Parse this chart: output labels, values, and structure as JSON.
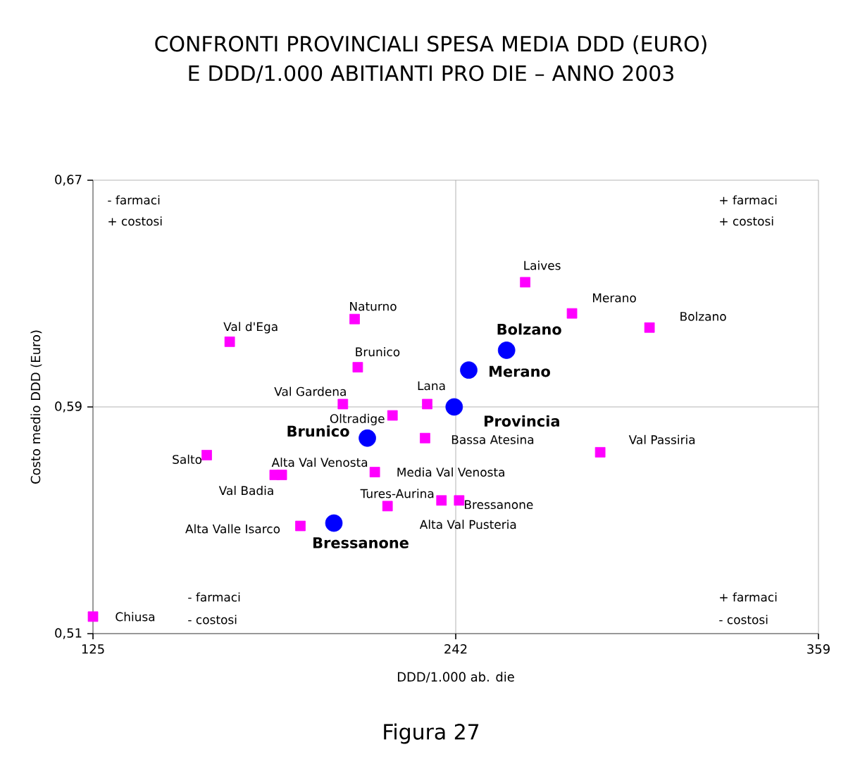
{
  "chart_data": {
    "type": "scatter",
    "title": "CONFRONTI PROVINCIALI SPESA MEDIA DDD (EURO) E DDD/1.000 ABITIANTI PRO DIE – ANNO 2003",
    "xlabel": "DDD/1.000 ab. die",
    "ylabel": "Costo medio DDD (Euro)",
    "xlim": [
      125,
      359
    ],
    "ylim": [
      0.51,
      0.67
    ],
    "xticks": [
      125,
      242,
      359
    ],
    "yticks": [
      {
        "value": 0.51,
        "label": "0,51"
      },
      {
        "value": 0.59,
        "label": "0,59"
      },
      {
        "value": 0.67,
        "label": "0,67"
      }
    ],
    "ref_lines": [
      {
        "axis": "x",
        "value": 242,
        "color": "#a0a0a0"
      },
      {
        "axis": "y",
        "value": 0.59,
        "color": "#a0a0a0"
      }
    ],
    "grid": false,
    "annotations": [
      "- farmaci",
      "+ costosi",
      "+ farmaci",
      "+ costosi",
      "- farmaci",
      "- costosi",
      "+ farmaci",
      "- costosi",
      "Figura 27"
    ],
    "series": [
      {
        "name": "Laives",
        "color": "#ff00ff",
        "marker": "square",
        "x": [
          264.4
        ],
        "values": [
          0.634
        ]
      },
      {
        "name": "Merano",
        "color": "#ff00ff",
        "marker": "square",
        "x": [
          279.5
        ],
        "values": [
          0.623
        ]
      },
      {
        "name": "Bolzano",
        "color": "#ff00ff",
        "marker": "square",
        "x": [
          304.5
        ],
        "values": [
          0.618
        ]
      },
      {
        "name": "Naturno",
        "color": "#ff00ff",
        "marker": "square",
        "x": [
          209.4
        ],
        "values": [
          0.621
        ]
      },
      {
        "name": "Val d'Ega",
        "color": "#ff00ff",
        "marker": "square",
        "x": [
          169.1
        ],
        "values": [
          0.613
        ]
      },
      {
        "name": "Brunico",
        "color": "#ff00ff",
        "marker": "square",
        "x": [
          210.4
        ],
        "values": [
          0.604
        ]
      },
      {
        "name": "Val Gardena",
        "color": "#ff00ff",
        "marker": "square",
        "x": [
          205.6
        ],
        "values": [
          0.591
        ]
      },
      {
        "name": "Lana",
        "color": "#ff00ff",
        "marker": "square",
        "x": [
          232.8
        ],
        "values": [
          0.591
        ]
      },
      {
        "name": "Oltradige",
        "color": "#ff00ff",
        "marker": "square",
        "x": [
          221.6
        ],
        "values": [
          0.587
        ]
      },
      {
        "name": "Bassa Atesina",
        "color": "#ff00ff",
        "marker": "square",
        "x": [
          232.1
        ],
        "values": [
          0.579
        ]
      },
      {
        "name": "Salto",
        "color": "#ff00ff",
        "marker": "square",
        "x": [
          161.7
        ],
        "values": [
          0.573
        ]
      },
      {
        "name": "Alta Val Venosta",
        "color": "#ff00ff",
        "marker": "square",
        "x": [
          185.9
        ],
        "values": [
          0.566
        ]
      },
      {
        "name": "Val Badia",
        "color": "#ff00ff",
        "marker": "square",
        "x": [
          183.6
        ],
        "values": [
          0.566
        ]
      },
      {
        "name": "Media Val Venosta",
        "color": "#ff00ff",
        "marker": "square",
        "x": [
          215.9
        ],
        "values": [
          0.567
        ]
      },
      {
        "name": "Tures-Aurina",
        "color": "#ff00ff",
        "marker": "square",
        "x": [
          220.0
        ],
        "values": [
          0.555
        ]
      },
      {
        "name": "Alta Val Pusteria",
        "color": "#ff00ff",
        "marker": "square",
        "x": [
          237.4
        ],
        "values": [
          0.557
        ]
      },
      {
        "name": "Bressanone",
        "color": "#ff00ff",
        "marker": "square",
        "x": [
          243.1
        ],
        "values": [
          0.557
        ]
      },
      {
        "name": "Val Passiria",
        "color": "#ff00ff",
        "marker": "square",
        "x": [
          288.6
        ],
        "values": [
          0.574
        ]
      },
      {
        "name": "Alta Valle Isarco",
        "color": "#ff00ff",
        "marker": "square",
        "x": [
          191.9
        ],
        "values": [
          0.548
        ]
      },
      {
        "name": "Chiusa",
        "color": "#ff00ff",
        "marker": "square",
        "x": [
          125
        ],
        "values": [
          0.516
        ]
      },
      {
        "name": "Bolzano",
        "color": "#0000ff",
        "marker": "circle",
        "x": [
          258.4
        ],
        "values": [
          0.61
        ]
      },
      {
        "name": "Merano",
        "color": "#0000ff",
        "marker": "circle",
        "x": [
          246.2
        ],
        "values": [
          0.603
        ]
      },
      {
        "name": "Provincia",
        "color": "#0000ff",
        "marker": "circle",
        "x": [
          241.5
        ],
        "values": [
          0.59
        ]
      },
      {
        "name": "Brunico",
        "color": "#0000ff",
        "marker": "circle",
        "x": [
          213.5
        ],
        "values": [
          0.579
        ]
      },
      {
        "name": "Bressanone",
        "color": "#0000ff",
        "marker": "circle",
        "x": [
          202.7
        ],
        "values": [
          0.549
        ]
      }
    ]
  }
}
